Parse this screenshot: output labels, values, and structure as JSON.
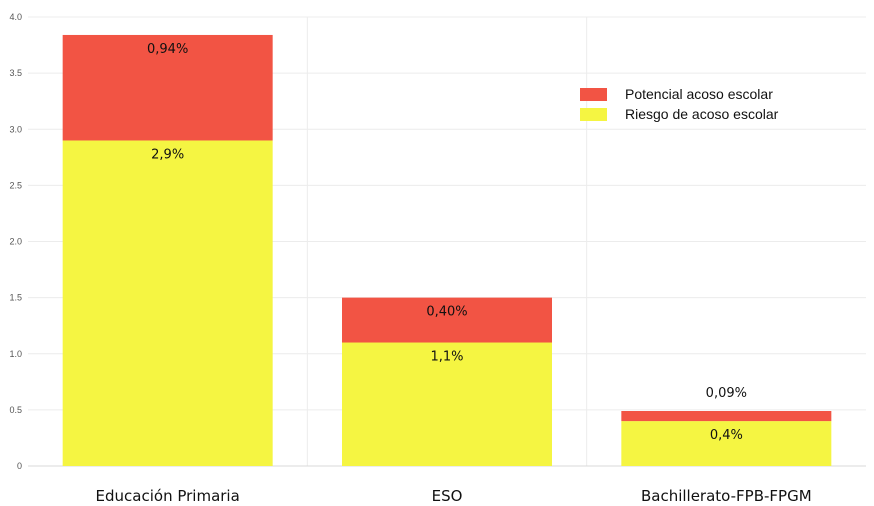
{
  "chart_data": {
    "type": "bar",
    "stacked": true,
    "categories": [
      "Educación Primaria",
      "ESO",
      "Bachillerato-FPB-FPGM"
    ],
    "series": [
      {
        "name": "Riesgo de acoso escolar",
        "values": [
          2.9,
          1.1,
          0.4
        ],
        "labels": [
          "2,9%",
          "1,1%",
          "0,4%"
        ],
        "color": "#f5f542"
      },
      {
        "name": "Potencial acoso escolar",
        "values": [
          0.94,
          0.4,
          0.09
        ],
        "labels": [
          "0,94%",
          "0,40%",
          "0,09%"
        ],
        "color": "#f25444"
      }
    ],
    "yticks": [
      "0",
      "0.5",
      "1.0",
      "1.5",
      "2.0",
      "2.5",
      "3.0",
      "3.5",
      "4.0"
    ],
    "ylim": [
      0,
      4
    ],
    "grid": true,
    "legend": "top-right"
  }
}
